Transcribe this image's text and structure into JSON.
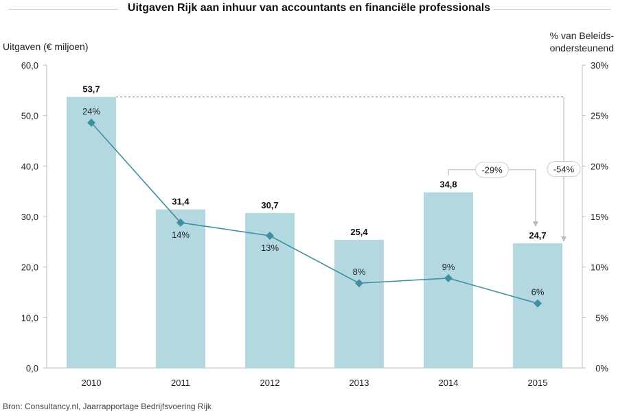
{
  "header": {
    "title": "Uitgaven Rijk aan inhuur van accountants en financiële professionals"
  },
  "source": "Bron: Consultancy.nl, Jaarrapportage Bedrijfsvoering Rijk",
  "chart_data": {
    "type": "bar",
    "title": "Uitgaven Rijk aan inhuur van accountants en financiële professionals",
    "ylabel": "Uitgaven (€ miljoen)",
    "ylabel_right": "% van Beleids- ondersteunend",
    "categories": [
      "2010",
      "2011",
      "2012",
      "2013",
      "2014",
      "2015"
    ],
    "ylim": [
      0,
      60
    ],
    "y_ticks": [
      "0,0",
      "10,0",
      "20,0",
      "30,0",
      "40,0",
      "50,0",
      "60,0"
    ],
    "y2lim": [
      0,
      30
    ],
    "y2_ticks": [
      "0%",
      "5%",
      "10%",
      "15%",
      "20%",
      "25%",
      "30%"
    ],
    "series": [
      {
        "type": "bar",
        "values": [
          53.7,
          31.4,
          30.7,
          25.4,
          34.8,
          24.7
        ],
        "labels": [
          "53,7",
          "31,4",
          "30,7",
          "25,4",
          "34,8",
          "24,7"
        ],
        "color": "#b3d8e0"
      },
      {
        "type": "line",
        "axis": "right",
        "values": [
          24.3,
          14.4,
          13.1,
          8.4,
          8.9,
          6.4
        ],
        "labels": [
          "24%",
          "14%",
          "13%",
          "8%",
          "9%",
          "6%"
        ],
        "color": "#3f8fa0"
      }
    ],
    "annotations": [
      {
        "text": "-29%",
        "from": "2014",
        "to": "2015"
      },
      {
        "text": "-54%",
        "from": "2010",
        "to": "2015"
      }
    ],
    "grid": false,
    "legend": "none"
  }
}
